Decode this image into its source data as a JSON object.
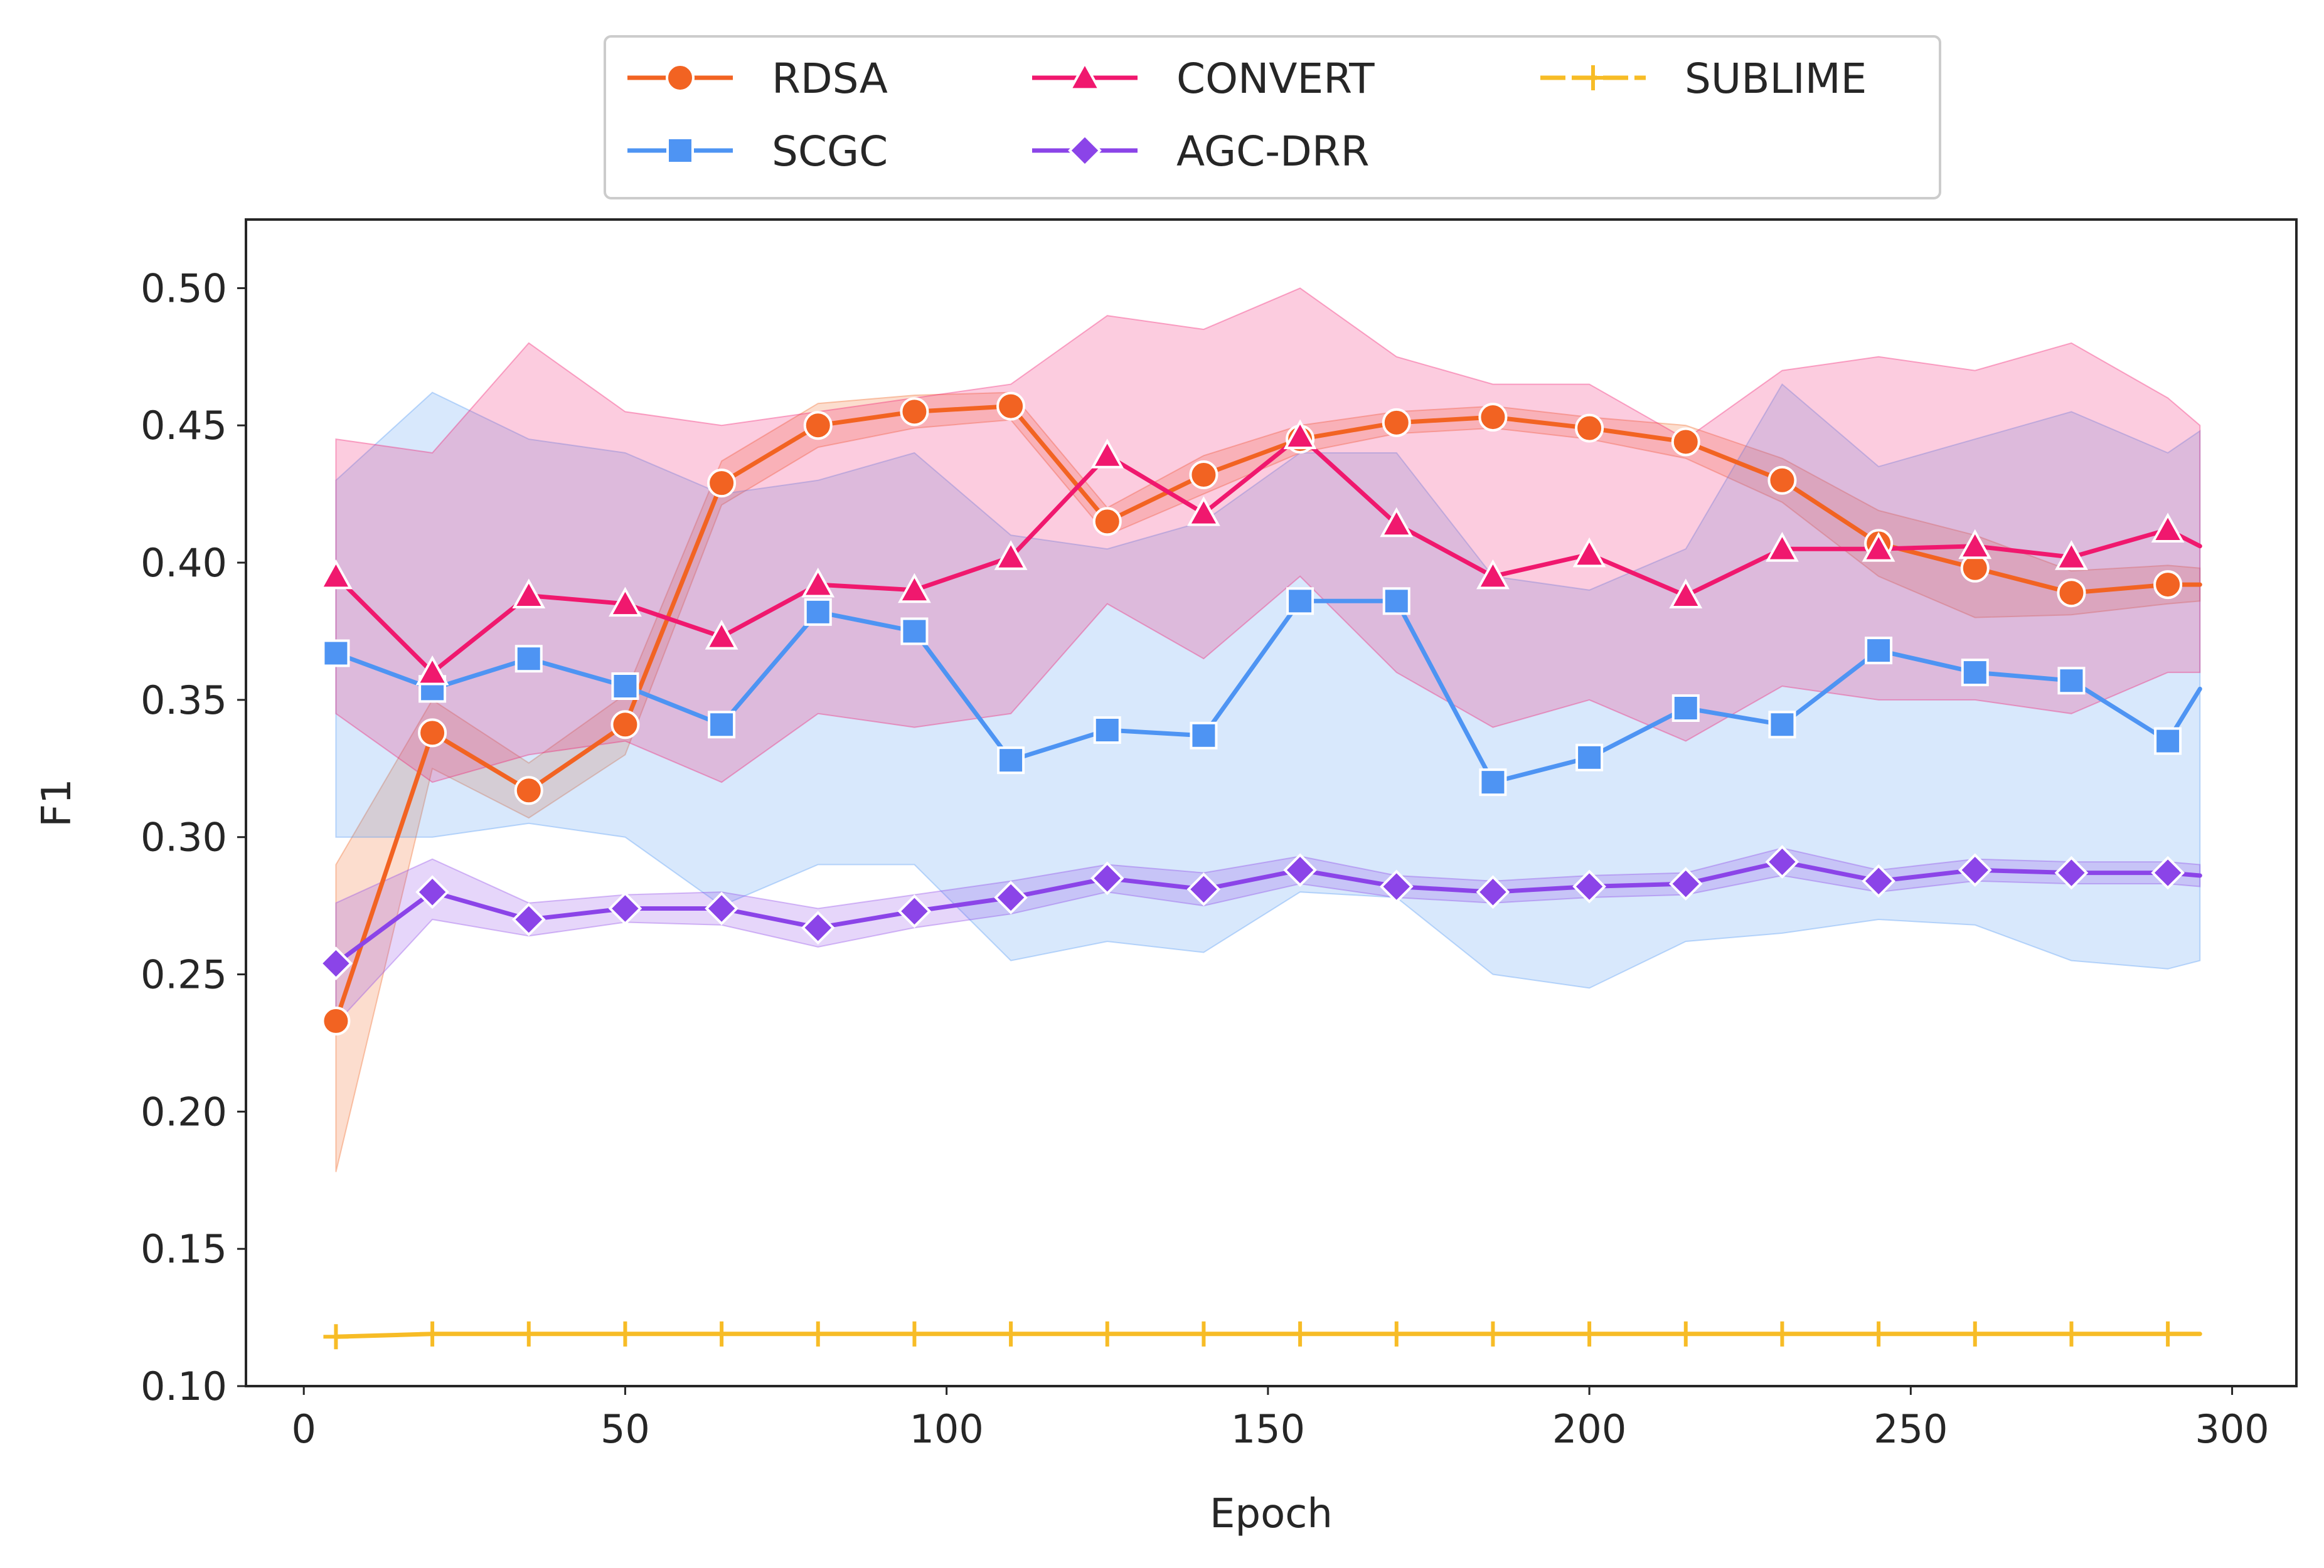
{
  "chart_data": {
    "type": "line",
    "title": "",
    "xlabel": "Epoch",
    "ylabel": "F1",
    "xlim": [
      -9,
      310
    ],
    "ylim": [
      0.1,
      0.525
    ],
    "xticks": [
      0,
      50,
      100,
      150,
      200,
      250,
      300
    ],
    "xtick_labels": [
      "0",
      "50",
      "100",
      "150",
      "200",
      "250",
      "300"
    ],
    "yticks": [
      0.1,
      0.15,
      0.2,
      0.25,
      0.3,
      0.35,
      0.4,
      0.45,
      0.5
    ],
    "ytick_labels": [
      "0.10",
      "0.15",
      "0.20",
      "0.25",
      "0.30",
      "0.35",
      "0.40",
      "0.45",
      "0.50"
    ],
    "grid": false,
    "legend_position": "top-center",
    "x": [
      5,
      20,
      35,
      50,
      65,
      80,
      95,
      110,
      125,
      140,
      155,
      170,
      185,
      200,
      215,
      230,
      245,
      260,
      275,
      290,
      295
    ],
    "series": [
      {
        "name": "RDSA",
        "color": "#f26322",
        "marker": "circle",
        "values": [
          0.233,
          0.338,
          0.317,
          0.341,
          0.429,
          0.45,
          0.455,
          0.457,
          0.415,
          0.432,
          0.445,
          0.451,
          0.453,
          0.449,
          0.444,
          0.43,
          0.407,
          0.398,
          0.389,
          0.392,
          0.392
        ],
        "band_lower": [
          0.178,
          0.325,
          0.307,
          0.33,
          0.421,
          0.442,
          0.449,
          0.452,
          0.41,
          0.425,
          0.44,
          0.447,
          0.449,
          0.445,
          0.438,
          0.422,
          0.395,
          0.38,
          0.381,
          0.385,
          0.386
        ],
        "band_upper": [
          0.29,
          0.35,
          0.327,
          0.352,
          0.437,
          0.458,
          0.461,
          0.462,
          0.42,
          0.439,
          0.45,
          0.455,
          0.457,
          0.453,
          0.45,
          0.438,
          0.419,
          0.41,
          0.397,
          0.399,
          0.398
        ]
      },
      {
        "name": "SCGC",
        "color": "#4e94f3",
        "marker": "square",
        "values": [
          0.367,
          0.354,
          0.365,
          0.355,
          0.341,
          0.382,
          0.375,
          0.328,
          0.339,
          0.337,
          0.386,
          0.386,
          0.32,
          0.329,
          0.347,
          0.341,
          0.368,
          0.36,
          0.357,
          0.335,
          0.354
        ],
        "band_lower": [
          0.3,
          0.3,
          0.305,
          0.3,
          0.275,
          0.29,
          0.29,
          0.255,
          0.262,
          0.258,
          0.28,
          0.278,
          0.25,
          0.245,
          0.262,
          0.265,
          0.27,
          0.268,
          0.255,
          0.252,
          0.255
        ],
        "band_upper": [
          0.43,
          0.462,
          0.445,
          0.44,
          0.425,
          0.43,
          0.44,
          0.41,
          0.405,
          0.415,
          0.44,
          0.44,
          0.395,
          0.39,
          0.405,
          0.465,
          0.435,
          0.445,
          0.455,
          0.44,
          0.448
        ]
      },
      {
        "name": "CONVERT",
        "color": "#f0186e",
        "marker": "triangle",
        "values": [
          0.395,
          0.36,
          0.388,
          0.385,
          0.373,
          0.392,
          0.39,
          0.402,
          0.439,
          0.418,
          0.446,
          0.414,
          0.395,
          0.403,
          0.388,
          0.405,
          0.405,
          0.406,
          0.402,
          0.412,
          0.406
        ],
        "band_lower": [
          0.345,
          0.32,
          0.33,
          0.335,
          0.32,
          0.345,
          0.34,
          0.345,
          0.385,
          0.365,
          0.395,
          0.36,
          0.34,
          0.35,
          0.335,
          0.355,
          0.35,
          0.35,
          0.345,
          0.36,
          0.36
        ],
        "band_upper": [
          0.445,
          0.44,
          0.48,
          0.455,
          0.45,
          0.455,
          0.46,
          0.465,
          0.49,
          0.485,
          0.5,
          0.475,
          0.465,
          0.465,
          0.445,
          0.47,
          0.475,
          0.47,
          0.48,
          0.46,
          0.45
        ]
      },
      {
        "name": "AGC-DRR",
        "color": "#8b44e8",
        "marker": "diamond",
        "values": [
          0.254,
          0.28,
          0.27,
          0.274,
          0.274,
          0.267,
          0.273,
          0.278,
          0.285,
          0.281,
          0.288,
          0.282,
          0.28,
          0.282,
          0.283,
          0.291,
          0.284,
          0.288,
          0.287,
          0.287,
          0.286
        ],
        "band_lower": [
          0.232,
          0.27,
          0.264,
          0.269,
          0.268,
          0.26,
          0.267,
          0.272,
          0.28,
          0.275,
          0.283,
          0.278,
          0.276,
          0.278,
          0.279,
          0.286,
          0.28,
          0.284,
          0.283,
          0.283,
          0.282
        ],
        "band_upper": [
          0.276,
          0.292,
          0.276,
          0.279,
          0.28,
          0.274,
          0.279,
          0.284,
          0.29,
          0.287,
          0.293,
          0.286,
          0.284,
          0.286,
          0.287,
          0.296,
          0.288,
          0.292,
          0.291,
          0.291,
          0.29
        ]
      },
      {
        "name": "SUBLIME",
        "color": "#f7bc26",
        "marker": "plus",
        "values": [
          0.118,
          0.119,
          0.119,
          0.119,
          0.119,
          0.119,
          0.119,
          0.119,
          0.119,
          0.119,
          0.119,
          0.119,
          0.119,
          0.119,
          0.119,
          0.119,
          0.119,
          0.119,
          0.119,
          0.119,
          0.119
        ]
      }
    ]
  }
}
